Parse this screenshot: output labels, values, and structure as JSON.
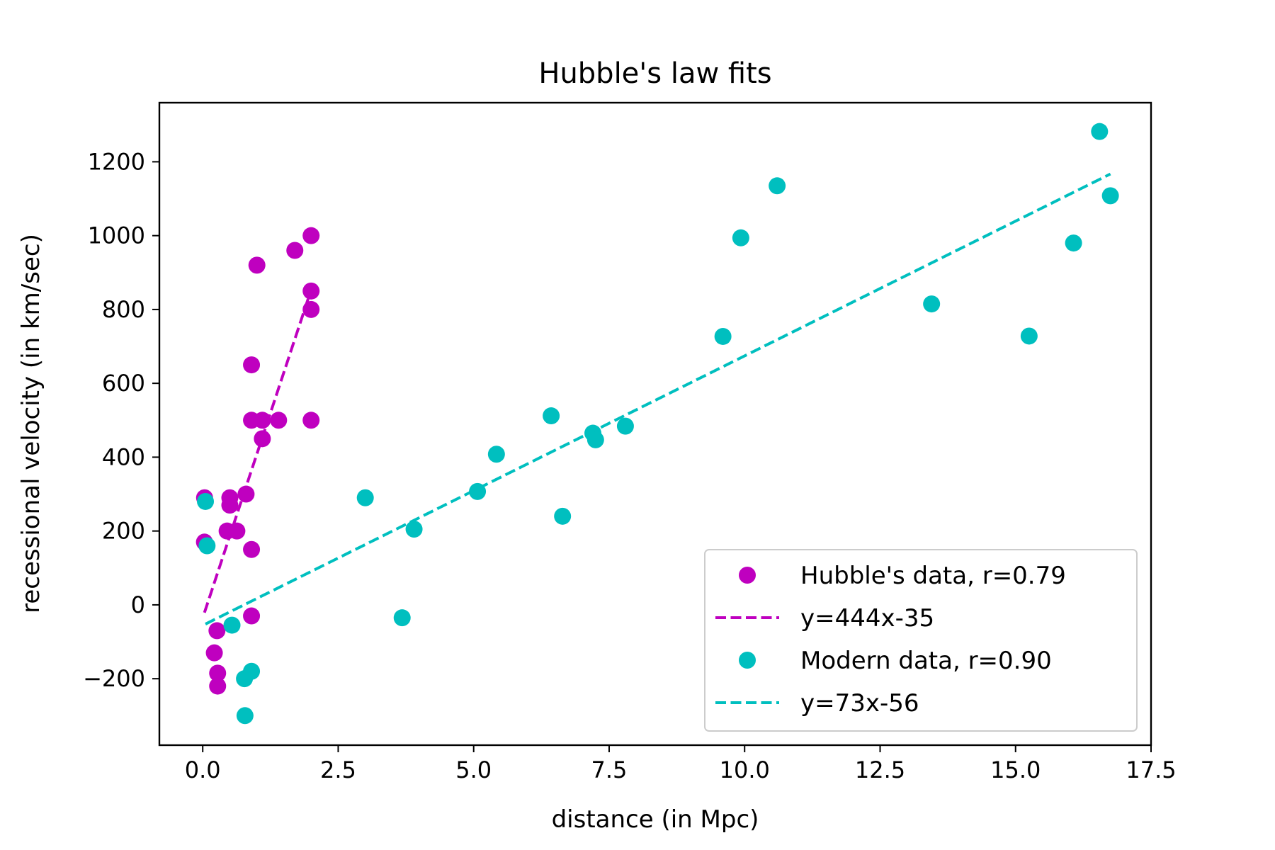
{
  "chart_data": {
    "type": "scatter",
    "title": "Hubble's law fits",
    "xlabel": "distance (in Mpc)",
    "ylabel": "recessional velocity (in km/sec)",
    "xlim": [
      -0.8,
      17.5
    ],
    "ylim": [
      -380,
      1360
    ],
    "xticks": [
      0.0,
      2.5,
      5.0,
      7.5,
      10.0,
      12.5,
      15.0,
      17.5
    ],
    "xtick_labels": [
      "0.0",
      "2.5",
      "5.0",
      "7.5",
      "10.0",
      "12.5",
      "15.0",
      "17.5"
    ],
    "yticks": [
      -200,
      0,
      200,
      400,
      600,
      800,
      1000,
      1200
    ],
    "ytick_labels": [
      "−200",
      "0",
      "200",
      "400",
      "600",
      "800",
      "1000",
      "1200"
    ],
    "grid": false,
    "legend_position": "lower-right",
    "series": [
      {
        "name": "Hubble's data, r=0.79",
        "kind": "scatter",
        "color": "#bf00bf",
        "points": [
          [
            0.032,
            170
          ],
          [
            0.034,
            290
          ],
          [
            0.214,
            -130
          ],
          [
            0.263,
            -70
          ],
          [
            0.275,
            -185
          ],
          [
            0.275,
            -220
          ],
          [
            0.45,
            200
          ],
          [
            0.5,
            290
          ],
          [
            0.5,
            270
          ],
          [
            0.63,
            200
          ],
          [
            0.8,
            300
          ],
          [
            0.9,
            -30
          ],
          [
            0.9,
            650
          ],
          [
            0.9,
            150
          ],
          [
            0.9,
            500
          ],
          [
            1.0,
            920
          ],
          [
            1.1,
            450
          ],
          [
            1.1,
            500
          ],
          [
            1.4,
            500
          ],
          [
            1.7,
            960
          ],
          [
            2.0,
            500
          ],
          [
            2.0,
            850
          ],
          [
            2.0,
            800
          ],
          [
            2.0,
            1000
          ]
        ]
      },
      {
        "name": "y=444x-35",
        "kind": "line",
        "style": "dashed",
        "color": "#bf00bf",
        "points": [
          [
            0.032,
            -21
          ],
          [
            2.0,
            853
          ]
        ]
      },
      {
        "name": "Modern data, r=0.90",
        "kind": "scatter",
        "color": "#00bfbf",
        "points": [
          [
            0.05,
            280
          ],
          [
            0.08,
            160
          ],
          [
            0.54,
            -55
          ],
          [
            0.77,
            -200
          ],
          [
            0.78,
            -300
          ],
          [
            0.9,
            -180
          ],
          [
            3.0,
            290
          ],
          [
            3.68,
            -35
          ],
          [
            3.9,
            205
          ],
          [
            5.07,
            307
          ],
          [
            5.42,
            408
          ],
          [
            6.43,
            512
          ],
          [
            6.64,
            240
          ],
          [
            7.2,
            465
          ],
          [
            7.25,
            447
          ],
          [
            7.8,
            484
          ],
          [
            9.6,
            727
          ],
          [
            9.93,
            994
          ],
          [
            10.6,
            1135
          ],
          [
            13.45,
            815
          ],
          [
            15.25,
            728
          ],
          [
            16.07,
            980
          ],
          [
            16.55,
            1282
          ],
          [
            16.75,
            1108
          ]
        ]
      },
      {
        "name": "y=73x-56",
        "kind": "line",
        "style": "dashed",
        "color": "#00bfbf",
        "points": [
          [
            0.05,
            -52
          ],
          [
            16.75,
            1167
          ]
        ]
      }
    ]
  }
}
